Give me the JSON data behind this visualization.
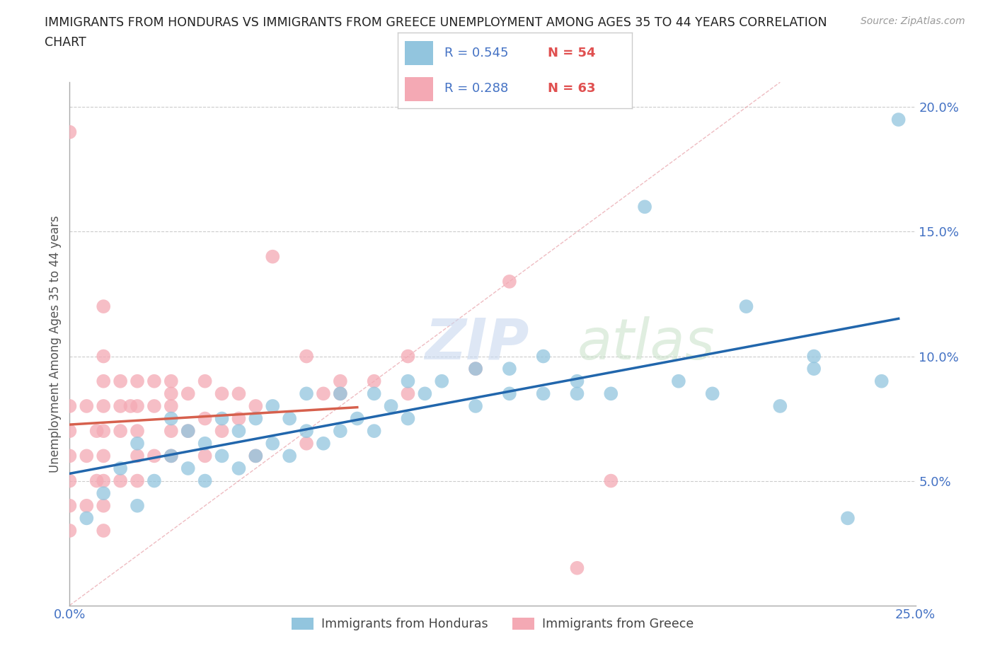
{
  "title_line1": "IMMIGRANTS FROM HONDURAS VS IMMIGRANTS FROM GREECE UNEMPLOYMENT AMONG AGES 35 TO 44 YEARS CORRELATION",
  "title_line2": "CHART",
  "source": "Source: ZipAtlas.com",
  "ylabel": "Unemployment Among Ages 35 to 44 years",
  "xlim": [
    0.0,
    0.25
  ],
  "ylim": [
    0.0,
    0.21
  ],
  "yticks": [
    0.0,
    0.05,
    0.1,
    0.15,
    0.2
  ],
  "ytick_labels": [
    "",
    "5.0%",
    "10.0%",
    "15.0%",
    "20.0%"
  ],
  "xticks": [
    0.0,
    0.05,
    0.1,
    0.15,
    0.2,
    0.25
  ],
  "xtick_labels": [
    "0.0%",
    "",
    "",
    "",
    "",
    "25.0%"
  ],
  "legend_R_honduras": "R = 0.545",
  "legend_N_honduras": "N = 54",
  "legend_R_greece": "R = 0.288",
  "legend_N_greece": "N = 63",
  "color_honduras": "#92c5de",
  "color_greece": "#f4a9b4",
  "trendline_color_honduras": "#2166ac",
  "trendline_color_greece": "#d6604d",
  "watermark_zip": "ZIP",
  "watermark_atlas": "atlas",
  "background_color": "#ffffff",
  "honduras_x": [
    0.005,
    0.01,
    0.015,
    0.02,
    0.02,
    0.025,
    0.03,
    0.03,
    0.035,
    0.035,
    0.04,
    0.04,
    0.045,
    0.045,
    0.05,
    0.05,
    0.055,
    0.055,
    0.06,
    0.06,
    0.065,
    0.065,
    0.07,
    0.07,
    0.075,
    0.08,
    0.08,
    0.085,
    0.09,
    0.09,
    0.095,
    0.1,
    0.1,
    0.105,
    0.11,
    0.12,
    0.12,
    0.13,
    0.13,
    0.14,
    0.14,
    0.15,
    0.15,
    0.16,
    0.17,
    0.18,
    0.19,
    0.2,
    0.21,
    0.22,
    0.22,
    0.23,
    0.24,
    0.245
  ],
  "honduras_y": [
    0.035,
    0.045,
    0.055,
    0.04,
    0.065,
    0.05,
    0.06,
    0.075,
    0.055,
    0.07,
    0.05,
    0.065,
    0.06,
    0.075,
    0.055,
    0.07,
    0.06,
    0.075,
    0.065,
    0.08,
    0.06,
    0.075,
    0.07,
    0.085,
    0.065,
    0.07,
    0.085,
    0.075,
    0.07,
    0.085,
    0.08,
    0.075,
    0.09,
    0.085,
    0.09,
    0.08,
    0.095,
    0.085,
    0.095,
    0.085,
    0.1,
    0.085,
    0.09,
    0.085,
    0.16,
    0.09,
    0.085,
    0.12,
    0.08,
    0.095,
    0.1,
    0.035,
    0.09,
    0.195
  ],
  "greece_x": [
    0.0,
    0.0,
    0.0,
    0.0,
    0.0,
    0.0,
    0.0,
    0.005,
    0.005,
    0.005,
    0.008,
    0.008,
    0.01,
    0.01,
    0.01,
    0.01,
    0.01,
    0.01,
    0.01,
    0.01,
    0.01,
    0.015,
    0.015,
    0.015,
    0.015,
    0.018,
    0.02,
    0.02,
    0.02,
    0.02,
    0.02,
    0.025,
    0.025,
    0.025,
    0.03,
    0.03,
    0.03,
    0.03,
    0.03,
    0.035,
    0.035,
    0.04,
    0.04,
    0.04,
    0.045,
    0.045,
    0.05,
    0.05,
    0.055,
    0.055,
    0.06,
    0.07,
    0.07,
    0.075,
    0.08,
    0.08,
    0.09,
    0.1,
    0.1,
    0.12,
    0.13,
    0.15,
    0.16
  ],
  "greece_y": [
    0.03,
    0.04,
    0.05,
    0.06,
    0.07,
    0.08,
    0.19,
    0.04,
    0.06,
    0.08,
    0.05,
    0.07,
    0.03,
    0.04,
    0.05,
    0.06,
    0.07,
    0.08,
    0.09,
    0.1,
    0.12,
    0.05,
    0.07,
    0.08,
    0.09,
    0.08,
    0.05,
    0.06,
    0.07,
    0.08,
    0.09,
    0.06,
    0.08,
    0.09,
    0.06,
    0.07,
    0.08,
    0.085,
    0.09,
    0.07,
    0.085,
    0.06,
    0.075,
    0.09,
    0.07,
    0.085,
    0.075,
    0.085,
    0.06,
    0.08,
    0.14,
    0.065,
    0.1,
    0.085,
    0.085,
    0.09,
    0.09,
    0.085,
    0.1,
    0.095,
    0.13,
    0.015,
    0.05
  ]
}
